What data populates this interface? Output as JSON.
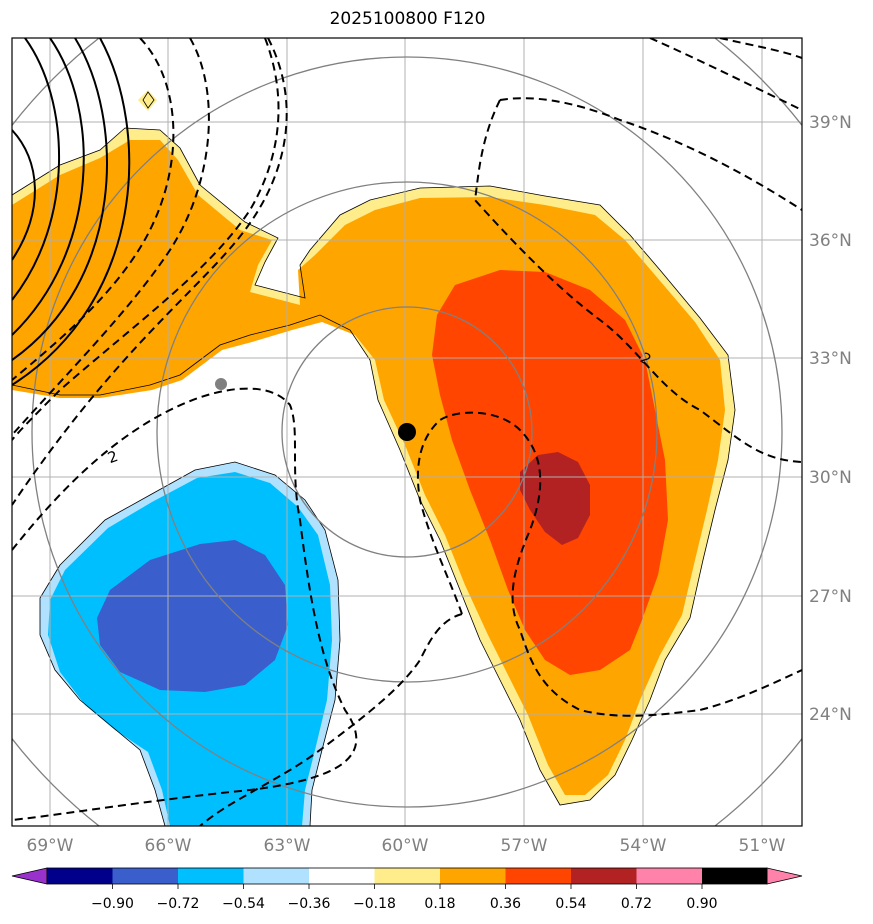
{
  "title": "2025100800 F120",
  "longitude_labels": [
    "69°W",
    "66°W",
    "63°W",
    "60°W",
    "57°W",
    "54°W",
    "51°W"
  ],
  "latitude_labels": [
    "39°N",
    "36°N",
    "33°N",
    "30°N",
    "27°N",
    "24°N"
  ],
  "contour_label": "2",
  "colorbar": {
    "ticks": [
      "−0.90",
      "−0.72",
      "−0.54",
      "−0.36",
      "−0.18",
      "0.18",
      "0.36",
      "0.54",
      "0.72",
      "0.90"
    ],
    "colors": [
      "#9932cc",
      "#00008b",
      "#3a5fcd",
      "#00bfff",
      "#b0e2ff",
      "#ffffff",
      "#ffec8b",
      "#ffa500",
      "#ff4500",
      "#b22222",
      "#ff82ab"
    ]
  },
  "fill_colors": {
    "light_yellow": "#ffec8b",
    "orange": "#ffa500",
    "red_orange": "#ff4500",
    "dark_red": "#b22222",
    "light_blue": "#b0e2ff",
    "deep_sky_blue": "#00bfff",
    "royal_blue": "#3a5fcd"
  },
  "center_marker": {
    "lon": -60.0,
    "lat": 31.1
  },
  "secondary_marker": {
    "lon": -64.6,
    "lat": 32.4
  }
}
